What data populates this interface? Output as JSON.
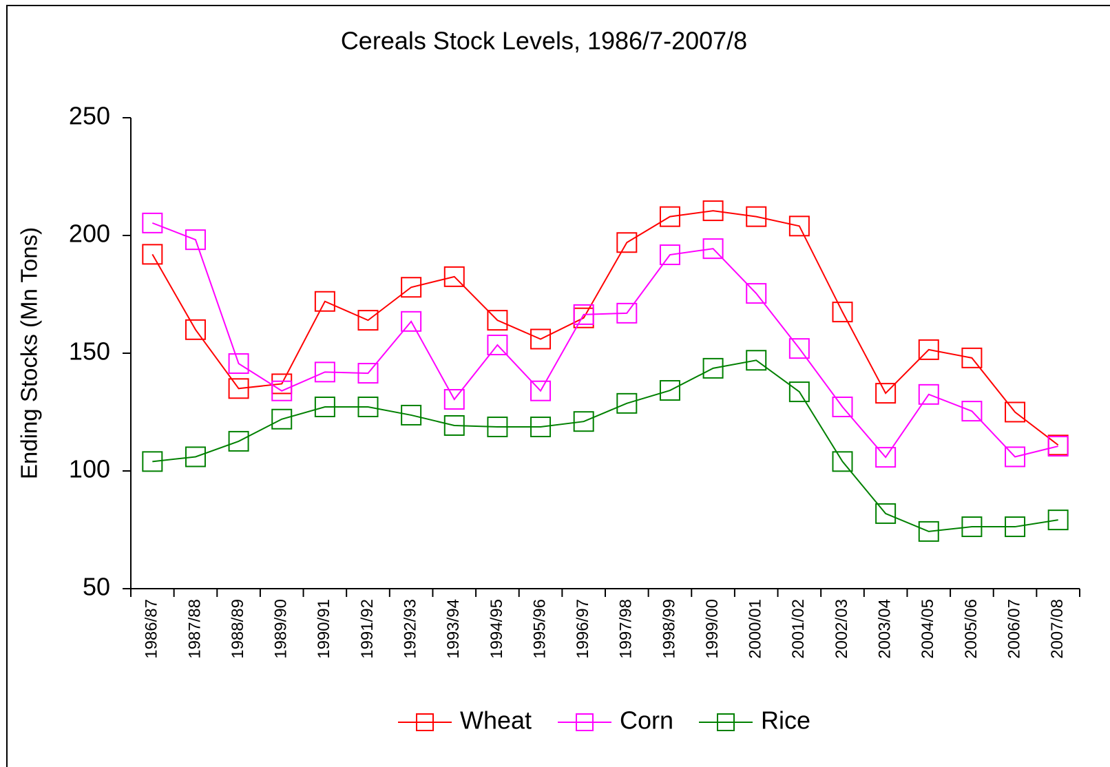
{
  "chart_data": {
    "type": "line",
    "title": "Cereals Stock Levels, 1986/7-2007/8",
    "y_label": "Ending Stocks (Mn Tons)",
    "categories": [
      "1986/87",
      "1987/88",
      "1988/89",
      "1989/90",
      "1990/91",
      "1991/92",
      "1992/93",
      "1993/94",
      "1994/95",
      "1995/96",
      "1996/97",
      "1997/98",
      "1998/99",
      "1999/00",
      "2000/01",
      "2001/02",
      "2002/03",
      "2003/04",
      "2004/05",
      "2005/06",
      "2006/07",
      "2007/08"
    ],
    "series": [
      {
        "name": "Wheat",
        "color": "#ff0000",
        "values": [
          192,
          160,
          135,
          137,
          172,
          164,
          178,
          182.5,
          164,
          156,
          165,
          197,
          208,
          210.5,
          208,
          204,
          167.5,
          133,
          151.5,
          148,
          125,
          111
        ]
      },
      {
        "name": "Corn",
        "color": "#ff00ff",
        "values": [
          205.3,
          198.2,
          145.6,
          134,
          142,
          141.5,
          163.5,
          130.4,
          153.5,
          134,
          166.4,
          167,
          191.8,
          194.4,
          175.4,
          152,
          127.2,
          105.8,
          132.5,
          125.4,
          106,
          110.5
        ]
      },
      {
        "name": "Rice",
        "color": "#008000",
        "values": [
          104,
          106,
          112.6,
          122,
          127.2,
          127.2,
          123.7,
          119.3,
          118.7,
          118.7,
          121,
          128.7,
          134.2,
          143.6,
          147,
          133.6,
          104,
          81.9,
          74.3,
          76.3,
          76.3,
          79.2
        ]
      }
    ],
    "ylim": [
      50,
      250
    ],
    "yticks": [
      50,
      100,
      150,
      200,
      250
    ],
    "legend": "bottom",
    "markers": "square"
  }
}
